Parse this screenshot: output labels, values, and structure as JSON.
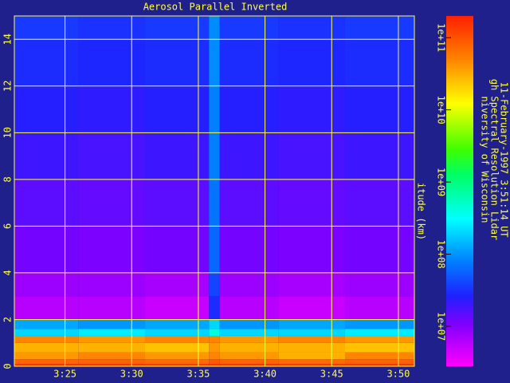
{
  "chart_data": {
    "type": "heatmap",
    "title": "Aerosol Parallel Inverted",
    "ylabel": "itude (km)",
    "annotations": [
      "niversity of Wisconsin",
      "gh Spectral Resolution Lidar",
      "11-February-1997  3:51:14 UT"
    ],
    "xlim": [
      21.2,
      51.2
    ],
    "xticks": [
      {
        "value": 25,
        "label": "3:25"
      },
      {
        "value": 30,
        "label": "3:30"
      },
      {
        "value": 35,
        "label": "3:35"
      },
      {
        "value": 40,
        "label": "3:40"
      },
      {
        "value": 45,
        "label": "3:45"
      },
      {
        "value": 50,
        "label": "3:50"
      }
    ],
    "ylim": [
      0,
      15
    ],
    "yticks": [
      0,
      2,
      4,
      6,
      8,
      10,
      12,
      14
    ],
    "grid": true,
    "grid_color": "#ffff40",
    "x_edges": [
      21.2,
      26,
      31,
      35.8,
      36.6,
      41,
      46,
      51.2
    ],
    "y_edges": [
      0,
      0.1,
      0.3,
      0.6,
      1.0,
      1.3,
      1.6,
      2,
      3,
      4,
      6,
      8,
      10,
      12,
      14,
      15
    ],
    "values": [
      [
        150000000000.0,
        150000000000.0,
        140000000000.0,
        150000000000.0,
        150000000000.0,
        140000000000.0,
        150000000000.0
      ],
      [
        80000000000.0,
        80000000000.0,
        70000000000.0,
        90000000000.0,
        80000000000.0,
        70000000000.0,
        80000000000.0
      ],
      [
        40000000000.0,
        50000000000.0,
        40000000000.0,
        50000000000.0,
        40000000000.0,
        30000000000.0,
        50000000000.0
      ],
      [
        30000000000.0,
        30000000000.0,
        25000000000.0,
        40000000000.0,
        30000000000.0,
        30000000000.0,
        25000000000.0
      ],
      [
        50000000000.0,
        40000000000.0,
        50000000000.0,
        50000000000.0,
        40000000000.0,
        50000000000.0,
        40000000000.0
      ],
      [
        200000000.0,
        250000000.0,
        200000000.0,
        400000000.0,
        200000000.0,
        200000000.0,
        250000000.0
      ],
      [
        120000000.0,
        100000000.0,
        120000000.0,
        200000000.0,
        100000000.0,
        120000000.0,
        100000000.0
      ],
      [
        6000000.0,
        6000000.0,
        5000000.0,
        30000000.0,
        6000000.0,
        5000000.0,
        6000000.0
      ],
      [
        8000000.0,
        8000000.0,
        7000000.0,
        40000000.0,
        8000000.0,
        7000000.0,
        8000000.0
      ],
      [
        12000000.0,
        11000000.0,
        12000000.0,
        60000000.0,
        12000000.0,
        11000000.0,
        12000000.0
      ],
      [
        15000000.0,
        14000000.0,
        15000000.0,
        70000000.0,
        15000000.0,
        14000000.0,
        15000000.0
      ],
      [
        20000000.0,
        18000000.0,
        20000000.0,
        80000000.0,
        20000000.0,
        18000000.0,
        20000000.0
      ],
      [
        25000000.0,
        23000000.0,
        25000000.0,
        80000000.0,
        25000000.0,
        23000000.0,
        25000000.0
      ],
      [
        30000000.0,
        28000000.0,
        30000000.0,
        90000000.0,
        30000000.0,
        28000000.0,
        30000000.0
      ],
      [
        35000000.0,
        32000000.0,
        35000000.0,
        90000000.0,
        35000000.0,
        32000000.0,
        35000000.0
      ]
    ],
    "colorscale_log": true,
    "clim": [
      2800000.0,
      200000000000.0
    ],
    "cticks": [
      {
        "value": 10000000.0,
        "label": "1e+07"
      },
      {
        "value": 100000000.0,
        "label": "1e+08"
      },
      {
        "value": 1000000000.0,
        "label": "1e+09"
      },
      {
        "value": 10000000000.0,
        "label": "1e+10"
      },
      {
        "value": 100000000000.0,
        "label": "1e+11"
      }
    ]
  }
}
